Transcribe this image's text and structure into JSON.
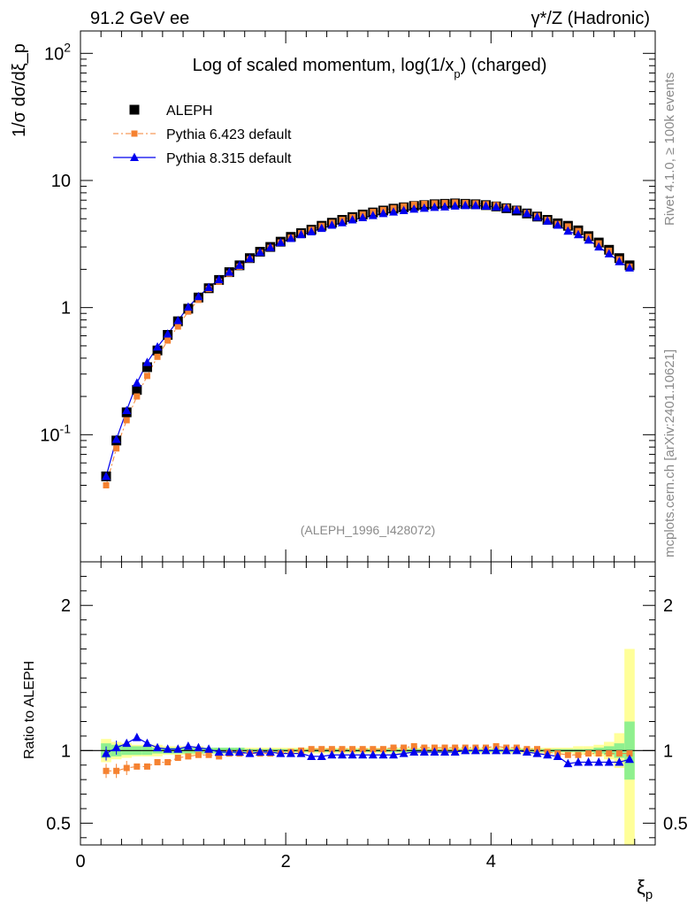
{
  "header": {
    "left": "91.2 GeV ee",
    "right": "γ*/Z (Hadronic)"
  },
  "side_text": {
    "rivet": "Rivet 4.1.0, ≥ 100k events",
    "mcplots": "mcplots.cern.ch [arXiv:2401.10621]"
  },
  "chart_data": [
    {
      "type": "scatter",
      "yscale": "log",
      "title": "Log of scaled momentum, log(1/x_p) (charged)",
      "ylabel": "1/σ dσ/dξ_p",
      "xlabel": "ξ_p",
      "xlim": [
        0,
        5.6
      ],
      "ylim": [
        0.01,
        150
      ],
      "yticks": [
        0.1,
        1,
        10,
        100
      ],
      "ytick_labels": [
        "10^-1",
        "1",
        "10",
        "10^2"
      ],
      "annotation": "(ALEPH_1996_I428072)",
      "legend": [
        "ALEPH",
        "Pythia 6.423 default",
        "Pythia 8.315 default"
      ],
      "x": [
        0.25,
        0.35,
        0.45,
        0.55,
        0.65,
        0.75,
        0.85,
        0.95,
        1.05,
        1.15,
        1.25,
        1.35,
        1.45,
        1.55,
        1.65,
        1.75,
        1.85,
        1.95,
        2.05,
        2.15,
        2.25,
        2.35,
        2.45,
        2.55,
        2.65,
        2.75,
        2.85,
        2.95,
        3.05,
        3.15,
        3.25,
        3.35,
        3.45,
        3.55,
        3.65,
        3.75,
        3.85,
        3.95,
        4.05,
        4.15,
        4.25,
        4.35,
        4.45,
        4.55,
        4.65,
        4.75,
        4.85,
        4.95,
        5.05,
        5.15,
        5.25,
        5.35
      ],
      "series": [
        {
          "name": "ALEPH",
          "color": "#000000",
          "values": [
            0.047,
            0.09,
            0.15,
            0.225,
            0.34,
            0.46,
            0.61,
            0.78,
            0.98,
            1.2,
            1.42,
            1.65,
            1.9,
            2.15,
            2.45,
            2.75,
            3.0,
            3.3,
            3.6,
            3.85,
            4.1,
            4.4,
            4.65,
            4.9,
            5.15,
            5.4,
            5.6,
            5.8,
            6.0,
            6.15,
            6.3,
            6.4,
            6.5,
            6.55,
            6.6,
            6.55,
            6.5,
            6.4,
            6.25,
            6.05,
            5.8,
            5.5,
            5.2,
            4.9,
            4.6,
            4.4,
            4.05,
            3.65,
            3.25,
            2.85,
            2.45,
            2.15
          ]
        },
        {
          "name": "Pythia 6.423 default",
          "color": "#f58231",
          "values": [
            0.04,
            0.078,
            0.13,
            0.2,
            0.29,
            0.41,
            0.55,
            0.71,
            0.93,
            1.15,
            1.4,
            1.6,
            1.85,
            2.1,
            2.4,
            2.7,
            2.95,
            3.25,
            3.55,
            3.85,
            4.1,
            4.4,
            4.65,
            4.9,
            5.15,
            5.4,
            5.65,
            5.85,
            6.05,
            6.25,
            6.45,
            6.55,
            6.6,
            6.65,
            6.7,
            6.65,
            6.6,
            6.5,
            6.4,
            6.15,
            5.9,
            5.55,
            5.25,
            4.9,
            4.55,
            4.35,
            4.0,
            3.6,
            3.2,
            2.8,
            2.4,
            2.1
          ]
        },
        {
          "name": "Pythia 8.315 default",
          "color": "#0000ee",
          "values": [
            0.047,
            0.092,
            0.155,
            0.255,
            0.37,
            0.49,
            0.62,
            0.79,
            1.01,
            1.22,
            1.44,
            1.66,
            1.9,
            2.15,
            2.43,
            2.72,
            2.97,
            3.25,
            3.5,
            3.75,
            3.95,
            4.2,
            4.45,
            4.65,
            4.9,
            5.1,
            5.3,
            5.5,
            5.65,
            5.8,
            5.95,
            6.05,
            6.15,
            6.2,
            6.3,
            6.35,
            6.35,
            6.3,
            6.2,
            6.05,
            5.85,
            5.5,
            5.15,
            4.8,
            4.45,
            4.0,
            3.75,
            3.4,
            3.0,
            2.65,
            2.3,
            2.05
          ]
        }
      ]
    },
    {
      "type": "scatter",
      "ylabel": "Ratio to ALEPH",
      "xlabel": "ξ_p",
      "xlim": [
        0,
        5.6
      ],
      "ylim": [
        0.35,
        2.3
      ],
      "yticks": [
        0.5,
        1,
        2
      ],
      "ytick_labels": [
        "0.5",
        "1",
        "2"
      ],
      "xticks": [
        0,
        2,
        4
      ],
      "xtick_labels": [
        "0",
        "2",
        "4"
      ],
      "x": [
        0.25,
        0.35,
        0.45,
        0.55,
        0.65,
        0.75,
        0.85,
        0.95,
        1.05,
        1.15,
        1.25,
        1.35,
        1.45,
        1.55,
        1.65,
        1.75,
        1.85,
        1.95,
        2.05,
        2.15,
        2.25,
        2.35,
        2.45,
        2.55,
        2.65,
        2.75,
        2.85,
        2.95,
        3.05,
        3.15,
        3.25,
        3.35,
        3.45,
        3.55,
        3.65,
        3.75,
        3.85,
        3.95,
        4.05,
        4.15,
        4.25,
        4.35,
        4.45,
        4.55,
        4.65,
        4.75,
        4.85,
        4.95,
        5.05,
        5.15,
        5.25,
        5.35
      ],
      "series": [
        {
          "name": "Pythia 6.423 default",
          "color": "#f58231",
          "values": [
            0.86,
            0.86,
            0.88,
            0.89,
            0.89,
            0.92,
            0.92,
            0.95,
            0.96,
            0.97,
            0.97,
            0.96,
            0.98,
            0.98,
            0.98,
            0.98,
            0.98,
            0.98,
            0.99,
            1.0,
            1.01,
            1.01,
            1.01,
            1.01,
            1.01,
            1.01,
            1.01,
            1.01,
            1.02,
            1.02,
            1.03,
            1.02,
            1.02,
            1.02,
            1.02,
            1.02,
            1.02,
            1.02,
            1.03,
            1.02,
            1.02,
            1.01,
            1.01,
            0.99,
            0.98,
            0.97,
            0.97,
            0.98,
            0.98,
            0.98,
            0.98,
            0.98
          ]
        },
        {
          "name": "Pythia 8.315 default",
          "color": "#0000ee",
          "values": [
            0.98,
            1.02,
            1.05,
            1.09,
            1.05,
            1.02,
            1.01,
            1.01,
            1.03,
            1.02,
            1.01,
            0.99,
            0.99,
            0.99,
            0.98,
            0.99,
            0.99,
            0.98,
            0.98,
            0.98,
            0.96,
            0.96,
            0.97,
            0.97,
            0.97,
            0.97,
            0.97,
            0.97,
            0.97,
            0.98,
            0.99,
            0.99,
            0.99,
            0.99,
            0.99,
            1.0,
            1.0,
            1.0,
            1.0,
            1.0,
            1.0,
            0.99,
            0.98,
            0.97,
            0.96,
            0.91,
            0.92,
            0.92,
            0.92,
            0.92,
            0.92,
            0.94
          ]
        }
      ],
      "uncertainty_bands": {
        "inner_color": "#8ff08f",
        "outer_color": "#ffff99",
        "inner_halfwidth": [
          0.05,
          0.04,
          0.03,
          0.03,
          0.03,
          0.02,
          0.02,
          0.02,
          0.02,
          0.02,
          0.02,
          0.02,
          0.02,
          0.02,
          0.01,
          0.01,
          0.01,
          0.01,
          0.01,
          0.01,
          0.01,
          0.01,
          0.01,
          0.01,
          0.01,
          0.01,
          0.01,
          0.01,
          0.01,
          0.01,
          0.01,
          0.01,
          0.01,
          0.01,
          0.01,
          0.01,
          0.01,
          0.01,
          0.01,
          0.01,
          0.01,
          0.01,
          0.01,
          0.01,
          0.01,
          0.01,
          0.01,
          0.01,
          0.02,
          0.03,
          0.05,
          0.2
        ],
        "outer_halfwidth": [
          0.08,
          0.06,
          0.05,
          0.04,
          0.04,
          0.04,
          0.03,
          0.03,
          0.03,
          0.03,
          0.02,
          0.02,
          0.02,
          0.02,
          0.02,
          0.02,
          0.02,
          0.02,
          0.02,
          0.02,
          0.02,
          0.02,
          0.02,
          0.02,
          0.02,
          0.02,
          0.02,
          0.02,
          0.02,
          0.02,
          0.02,
          0.02,
          0.02,
          0.02,
          0.02,
          0.02,
          0.02,
          0.02,
          0.02,
          0.02,
          0.02,
          0.02,
          0.02,
          0.02,
          0.02,
          0.02,
          0.03,
          0.03,
          0.04,
          0.06,
          0.12,
          0.7
        ]
      }
    }
  ]
}
